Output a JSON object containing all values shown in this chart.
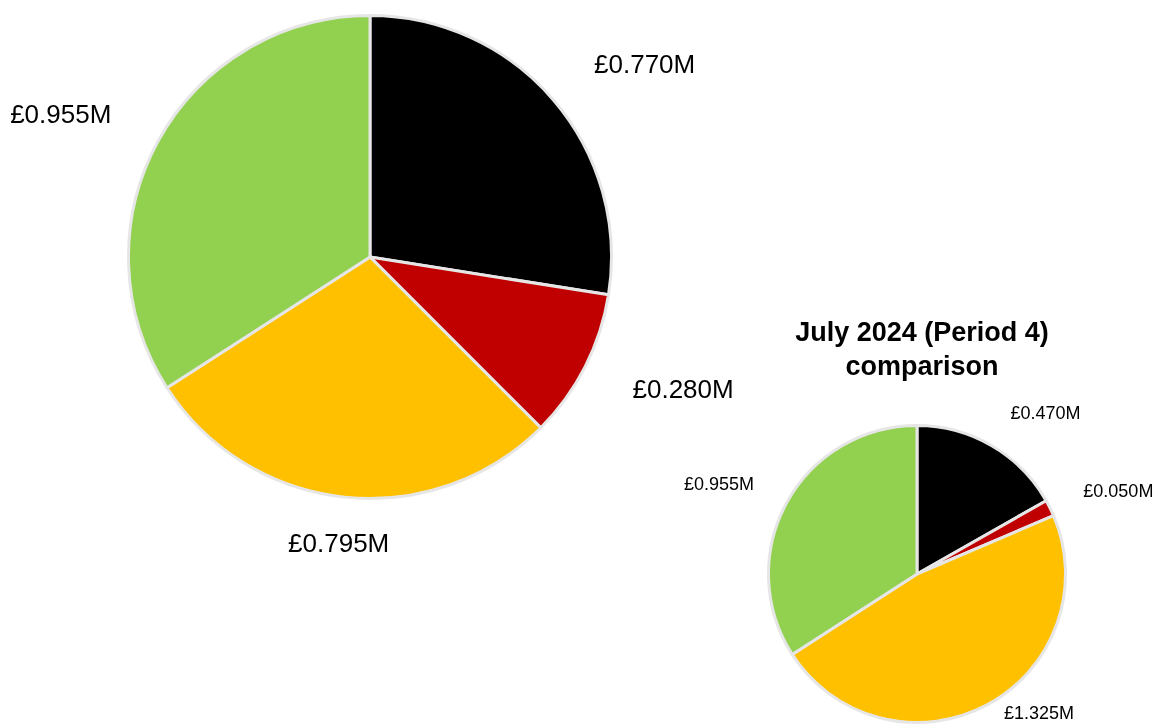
{
  "chart_data": [
    {
      "type": "pie",
      "categories": [
        null,
        null,
        null,
        null
      ],
      "values": [
        0.77,
        0.28,
        0.795,
        0.955
      ],
      "colors": [
        "#000000",
        "#c00000",
        "#ffc000",
        "#92d050"
      ],
      "value_labels": [
        "£0.770M",
        "£0.280M",
        "£0.795M",
        "£0.955M"
      ],
      "legend": false
    },
    {
      "type": "pie",
      "title": "July 2024 (Period 4) comparison",
      "categories": [
        null,
        null,
        null,
        null
      ],
      "values": [
        0.47,
        0.05,
        1.325,
        0.955
      ],
      "colors": [
        "#000000",
        "#c00000",
        "#ffc000",
        "#92d050"
      ],
      "value_labels": [
        "£0.470M",
        "£0.050M",
        "£1.325M",
        "£0.955M"
      ],
      "legend": false
    }
  ]
}
